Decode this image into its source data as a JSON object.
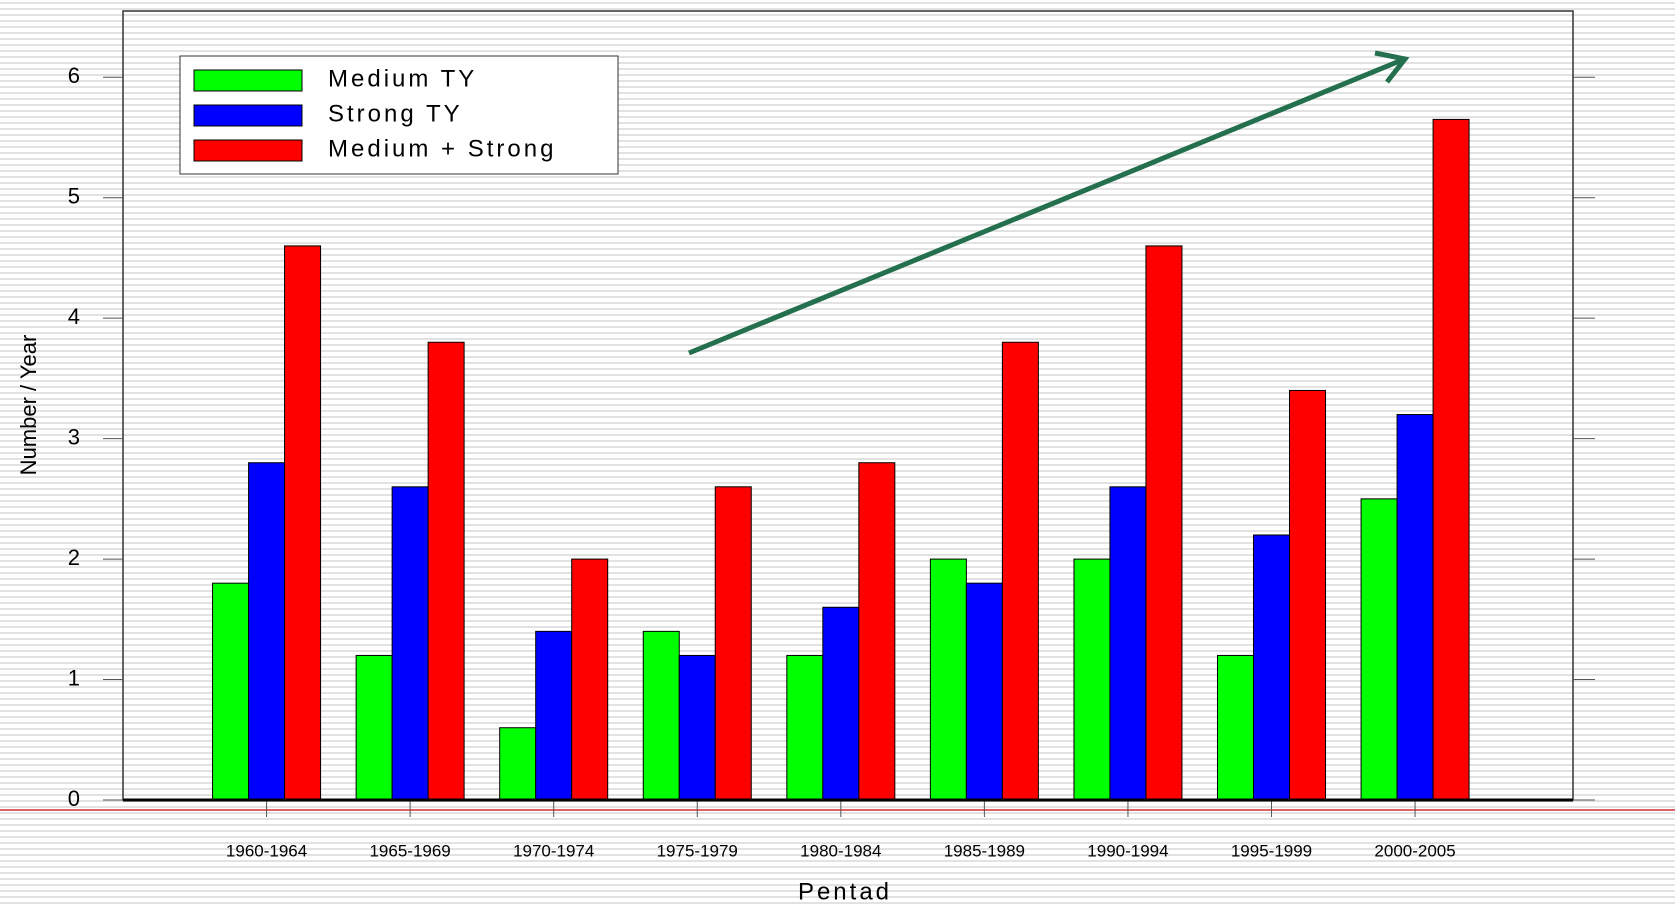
{
  "chart_data": {
    "type": "bar",
    "xlabel": "Pentad",
    "ylabel": "Number / Year",
    "categories": [
      "1960-1964",
      "1965-1969",
      "1970-1974",
      "1975-1979",
      "1980-1984",
      "1985-1989",
      "1990-1994",
      "1995-1999",
      "2000-2005"
    ],
    "series": [
      {
        "name": "Medium TY",
        "color": "#00ff00",
        "values": [
          1.8,
          1.2,
          0.6,
          1.4,
          1.2,
          2.0,
          2.0,
          1.2,
          2.5
        ]
      },
      {
        "name": "Strong TY",
        "color": "#0000ff",
        "values": [
          2.8,
          2.6,
          1.4,
          1.2,
          1.6,
          1.8,
          2.6,
          2.2,
          3.2
        ]
      },
      {
        "name": "Medium + Strong",
        "color": "#ff0000",
        "values": [
          4.6,
          3.8,
          2.0,
          2.6,
          2.8,
          3.8,
          4.6,
          3.4,
          5.65
        ]
      }
    ],
    "ylim": [
      0,
      6.55
    ],
    "yticks": [
      0,
      1,
      2,
      3,
      4,
      5,
      6
    ],
    "legend": "upper left"
  }
}
